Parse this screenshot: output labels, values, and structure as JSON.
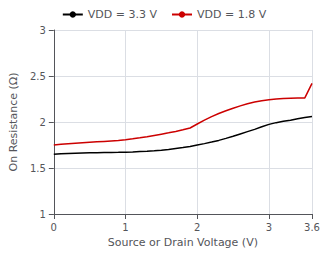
{
  "chart_data": {
    "type": "line",
    "xlabel": "Source or Drain Voltage (V)",
    "ylabel": "On Resistance (Ω)",
    "xlim": [
      0,
      3.6
    ],
    "ylim": [
      1,
      3
    ],
    "xticks": [
      0,
      1,
      2,
      3,
      3.6
    ],
    "yticks": [
      1,
      1.5,
      2,
      2.5,
      3
    ],
    "grid": true,
    "legend": "top",
    "x": [
      0.0,
      0.1,
      0.2,
      0.3,
      0.4,
      0.5,
      0.6,
      0.7,
      0.8,
      0.9,
      1.0,
      1.1,
      1.2,
      1.3,
      1.4,
      1.5,
      1.6,
      1.7,
      1.8,
      1.9,
      2.0,
      2.1,
      2.2,
      2.3,
      2.4,
      2.5,
      2.6,
      2.7,
      2.8,
      2.9,
      3.0,
      3.1,
      3.2,
      3.3,
      3.4,
      3.5,
      3.6
    ],
    "series": [
      {
        "name": "VDD = 3.3 V",
        "color": "#000000",
        "values": [
          1.65,
          1.655,
          1.658,
          1.661,
          1.663,
          1.665,
          1.667,
          1.668,
          1.669,
          1.67,
          1.672,
          1.675,
          1.679,
          1.683,
          1.688,
          1.694,
          1.702,
          1.712,
          1.722,
          1.734,
          1.75,
          1.765,
          1.782,
          1.8,
          1.822,
          1.845,
          1.87,
          1.895,
          1.92,
          1.948,
          1.974,
          1.993,
          2.007,
          2.02,
          2.035,
          2.048,
          2.06
        ]
      },
      {
        "name": "VDD = 1.8 V",
        "color": "#cc0000",
        "values": [
          1.75,
          1.757,
          1.763,
          1.769,
          1.774,
          1.779,
          1.784,
          1.789,
          1.794,
          1.799,
          1.807,
          1.817,
          1.828,
          1.84,
          1.854,
          1.868,
          1.882,
          1.897,
          1.915,
          1.935,
          1.978,
          2.02,
          2.058,
          2.092,
          2.122,
          2.15,
          2.175,
          2.198,
          2.218,
          2.232,
          2.242,
          2.25,
          2.255,
          2.258,
          2.26,
          2.262,
          2.42
        ]
      }
    ]
  }
}
